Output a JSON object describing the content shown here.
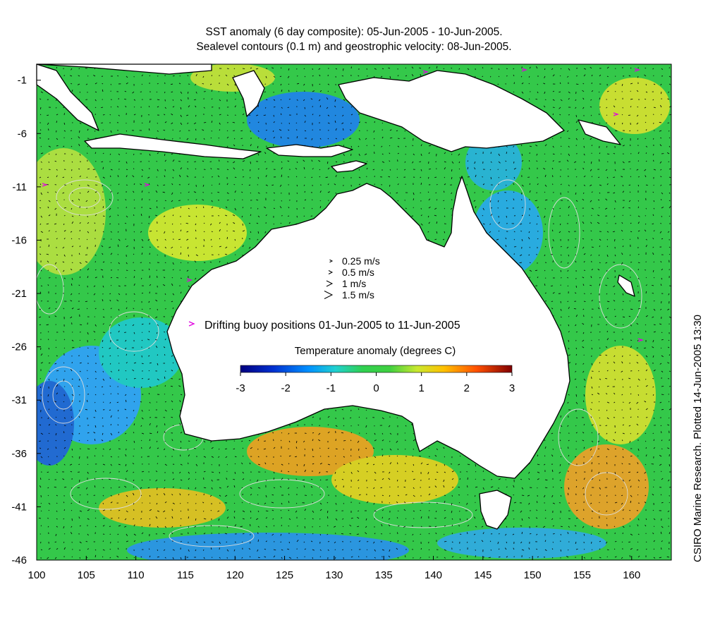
{
  "title_line1": "SST anomaly (6 day composite): 05-Jun-2005 - 10-Jun-2005.",
  "title_line2": "Sealevel contours (0.1 m) and geostrophic velocity: 08-Jun-2005.",
  "side_note": "CSIRO Marine Research. Plotted 14-Jun-2005 13:30",
  "x_ticks": [
    "100",
    "105",
    "110",
    "115",
    "120",
    "125",
    "130",
    "135",
    "140",
    "145",
    "150",
    "155",
    "160"
  ],
  "x_tick_values": [
    100,
    105,
    110,
    115,
    120,
    125,
    130,
    135,
    140,
    145,
    150,
    155,
    160
  ],
  "y_ticks": [
    "-1",
    "-6",
    "-11",
    "-16",
    "-21",
    "-26",
    "-31",
    "-36",
    "-41",
    "-46"
  ],
  "y_tick_values": [
    -1,
    -6,
    -11,
    -16,
    -21,
    -26,
    -31,
    -36,
    -41,
    -46
  ],
  "lon_range": [
    100,
    164
  ],
  "lat_range": [
    -46,
    0.5
  ],
  "velocity_legend": [
    {
      "label": "0.25 m/s",
      "speed": 0.25
    },
    {
      "label": "0.5 m/s",
      "speed": 0.5
    },
    {
      "label": "1 m/s",
      "speed": 1
    },
    {
      "label": "1.5 m/s",
      "speed": 1.5
    }
  ],
  "buoy_legend": {
    "label": "Drifting buoy positions 01-Jun-2005 to 11-Jun-2005",
    "color": "#e000e0"
  },
  "colorbar": {
    "title": "Temperature anomaly (degrees C)",
    "ticks": [
      "-3",
      "-2",
      "-1",
      "0",
      "1",
      "2",
      "3"
    ],
    "tick_values": [
      -3,
      -2,
      -1,
      0,
      1,
      2,
      3
    ],
    "range": [
      -3,
      3
    ]
  },
  "colors": {
    "land": "#ffffff",
    "coast": "#000000",
    "contour": "#dcdcdc",
    "arrow": "#000000"
  }
}
